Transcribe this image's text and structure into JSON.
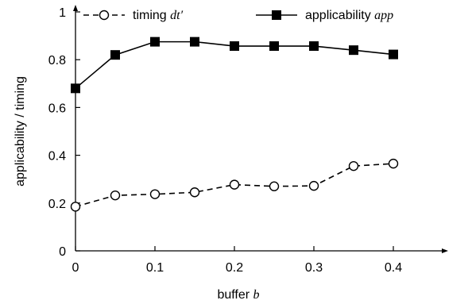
{
  "chart_data": {
    "type": "line",
    "x": [
      0,
      0.05,
      0.1,
      0.15,
      0.2,
      0.25,
      0.3,
      0.35,
      0.4
    ],
    "xlabel": {
      "text": "buffer ",
      "var": "b"
    },
    "ylabel": "applicability / timing",
    "xlim": [
      0,
      0.45
    ],
    "ylim": [
      0,
      1
    ],
    "xticks": [
      0,
      0.1,
      0.2,
      0.3,
      0.4
    ],
    "xtick_labels": [
      "0",
      "0.1",
      "0.2",
      "0.3",
      "0.4"
    ],
    "yticks": [
      0,
      0.2,
      0.4,
      0.6,
      0.8,
      1
    ],
    "ytick_labels": [
      "0",
      "0.2",
      "0.4",
      "0.6",
      "0.8",
      "1"
    ],
    "grid": false,
    "legend_position": "top",
    "series": [
      {
        "name": "timing",
        "name_var": "dt′",
        "style": "dashed",
        "marker": "open-circle",
        "color": "#000000",
        "values": [
          0.185,
          0.232,
          0.237,
          0.245,
          0.277,
          0.27,
          0.272,
          0.355,
          0.365
        ]
      },
      {
        "name": "applicability",
        "name_var": "app",
        "style": "solid",
        "marker": "filled-square",
        "color": "#000000",
        "values": [
          0.68,
          0.82,
          0.875,
          0.875,
          0.857,
          0.857,
          0.857,
          0.84,
          0.822
        ]
      }
    ]
  }
}
